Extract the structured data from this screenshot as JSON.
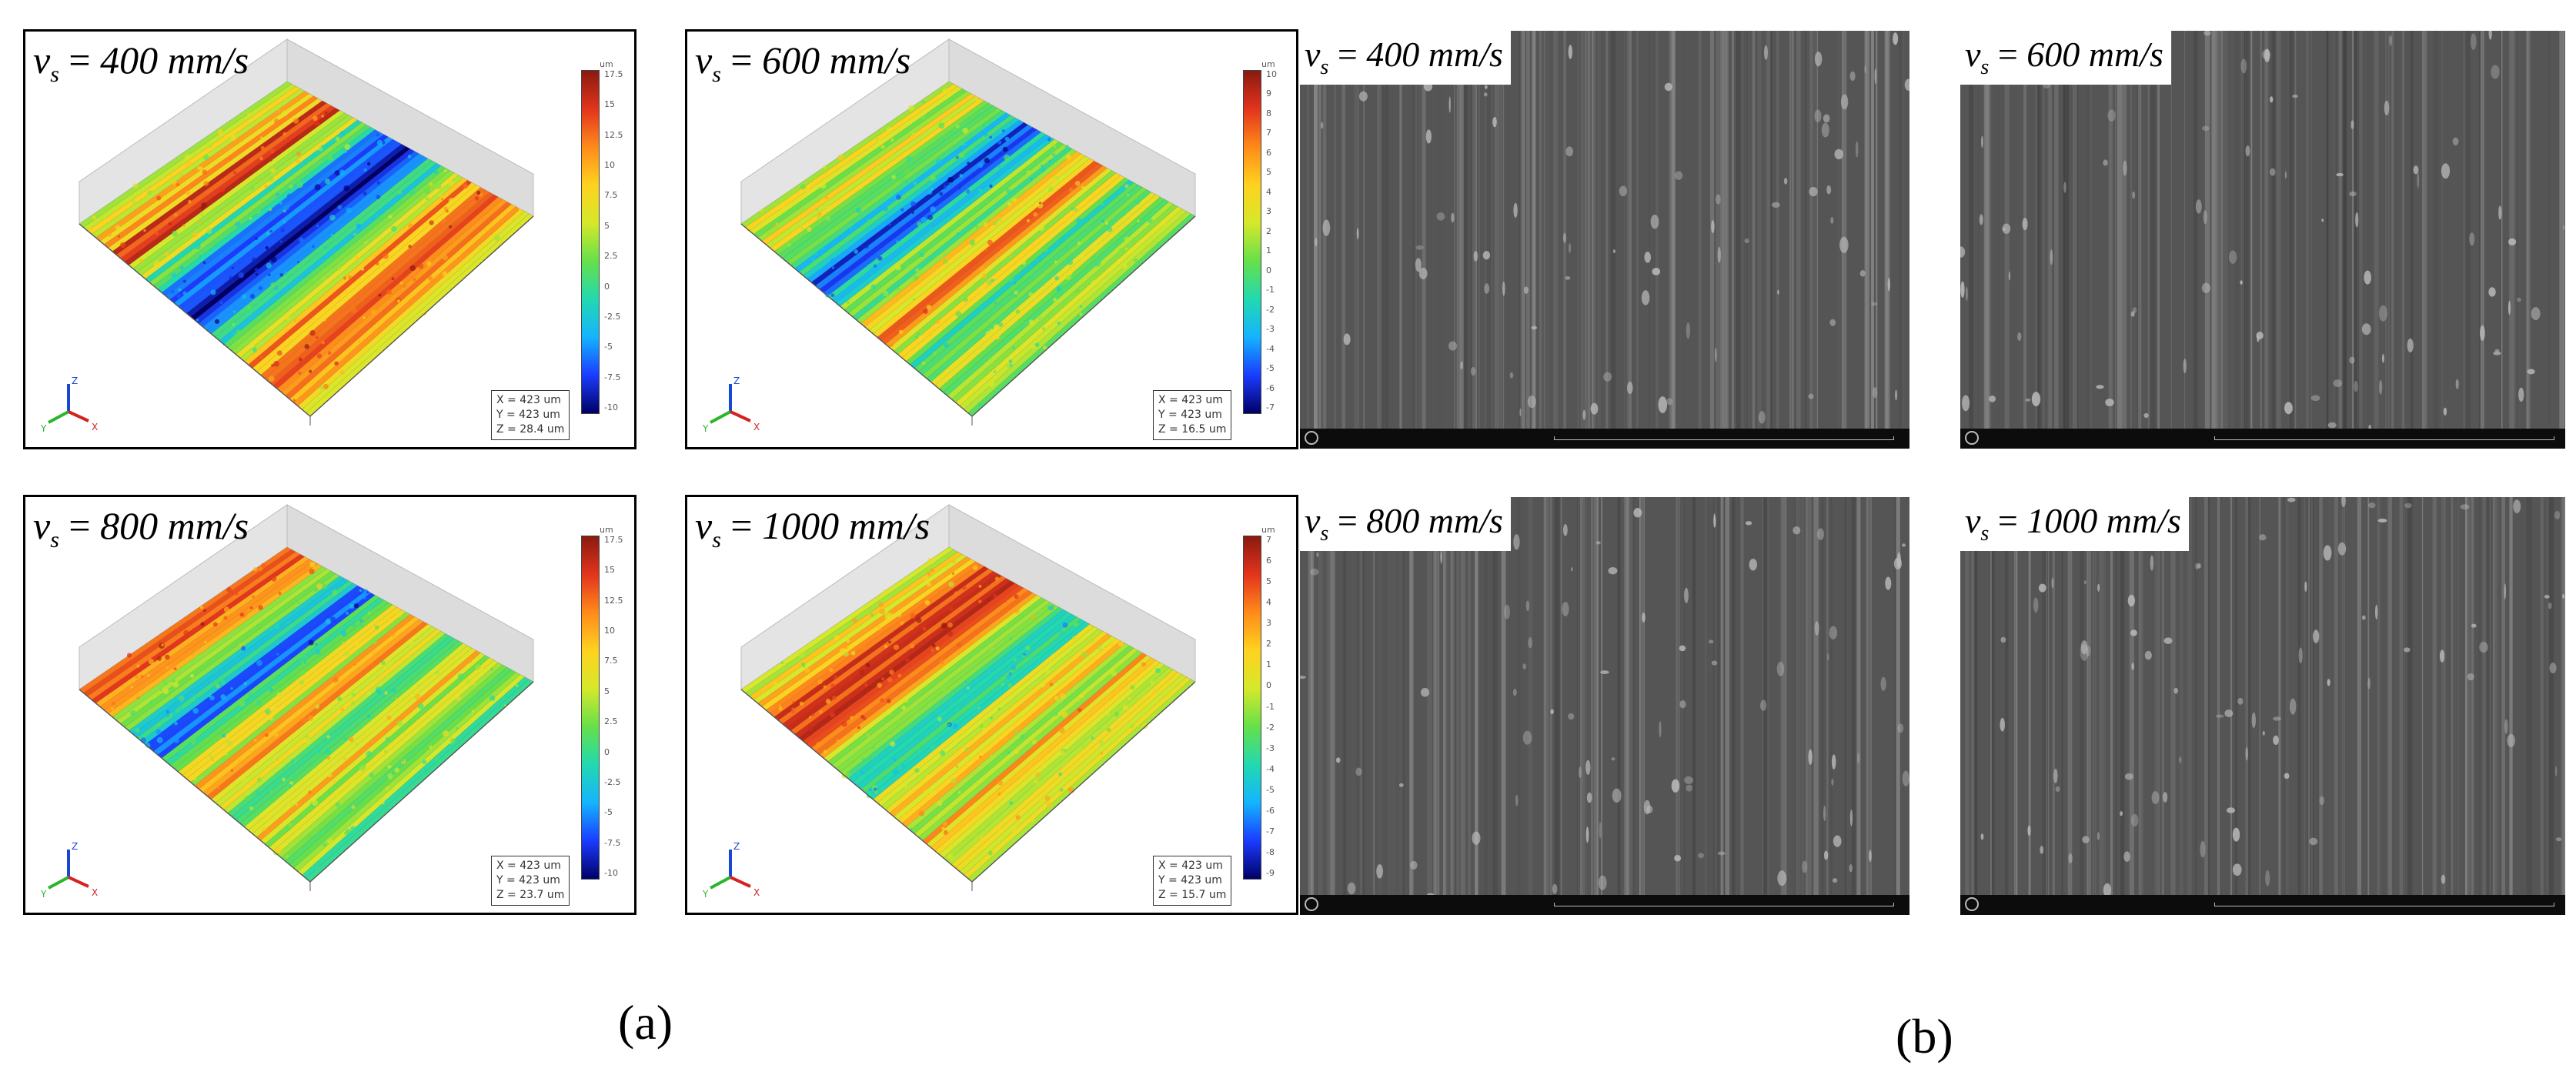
{
  "colors": {
    "surface_scale": [
      "#000066",
      "#1a3cff",
      "#14b4ff",
      "#22d9b0",
      "#66e04a",
      "#d6e82a",
      "#ffd21f",
      "#ff8a1a",
      "#e2341c",
      "#8a1a10"
    ],
    "sem_background": "#555555",
    "panel_border": "#000000"
  },
  "profiles": [
    {
      "label": "400 mm/s",
      "readout": [
        "X = 423 um",
        "Y = 423 um",
        "Z = 28.4 um"
      ],
      "colorbar_ticks": [
        "17.5",
        "15",
        "12.5",
        "10",
        "7.5",
        "5",
        "2.5",
        "0",
        "-2.5",
        "-5",
        "-7.5",
        "-10"
      ],
      "unit": "um"
    },
    {
      "label": "600 mm/s",
      "readout": [
        "X = 423 um",
        "Y = 423 um",
        "Z = 16.5 um"
      ],
      "colorbar_ticks": [
        "10",
        "9",
        "8",
        "7",
        "6",
        "5",
        "4",
        "3",
        "2",
        "1",
        "0",
        "-1",
        "-2",
        "-3",
        "-4",
        "-5",
        "-6",
        "-7"
      ],
      "unit": "um"
    },
    {
      "label": "800 mm/s",
      "readout": [
        "X = 423 um",
        "Y = 423 um",
        "Z = 23.7 um"
      ],
      "colorbar_ticks": [
        "17.5",
        "15",
        "12.5",
        "10",
        "7.5",
        "5",
        "2.5",
        "0",
        "-2.5",
        "-5",
        "-7.5",
        "-10"
      ],
      "unit": "um"
    },
    {
      "label": "1000 mm/s",
      "readout": [
        "X = 423 um",
        "Y = 423 um",
        "Z = 15.7 um"
      ],
      "colorbar_ticks": [
        "7",
        "6",
        "5",
        "4",
        "3",
        "2",
        "1",
        "0",
        "-1",
        "-2",
        "-3",
        "-4",
        "-5",
        "-6",
        "-7",
        "-8",
        "-9"
      ],
      "unit": "um"
    }
  ],
  "sem_images": [
    {
      "label": "400 mm/s"
    },
    {
      "label": "600 mm/s"
    },
    {
      "label": "800 mm/s"
    },
    {
      "label": "1000 mm/s"
    }
  ],
  "captions": {
    "a": "(a)",
    "b": "(b)"
  }
}
